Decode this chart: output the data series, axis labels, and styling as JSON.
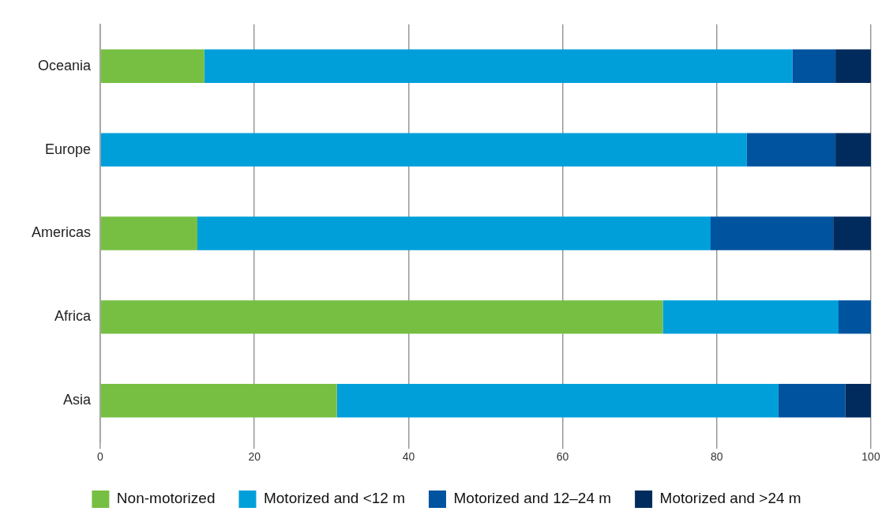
{
  "chart_data": {
    "type": "bar",
    "orientation": "horizontal",
    "stacked": true,
    "categories": [
      "Oceania",
      "Europe",
      "Americas",
      "Africa",
      "Asia"
    ],
    "series": [
      {
        "name": "Non-motorized",
        "color": "#76bf43",
        "values": [
          13.5,
          0,
          12.6,
          73.0,
          30.7
        ]
      },
      {
        "name": "Motorized and <12 m",
        "color": "#009fda",
        "values": [
          76.3,
          83.9,
          66.6,
          22.8,
          57.3
        ]
      },
      {
        "name": "Motorized and 12–24 m",
        "color": "#00539f",
        "values": [
          5.6,
          11.5,
          15.9,
          4.2,
          8.7
        ]
      },
      {
        "name": "Motorized and >24 m",
        "color": "#002b5c",
        "values": [
          4.6,
          4.6,
          4.9,
          0,
          3.3
        ]
      }
    ],
    "xlim": [
      0,
      100
    ],
    "xticks": [
      0,
      20,
      40,
      60,
      80,
      100
    ],
    "grid": "x",
    "legend": "bottom"
  }
}
